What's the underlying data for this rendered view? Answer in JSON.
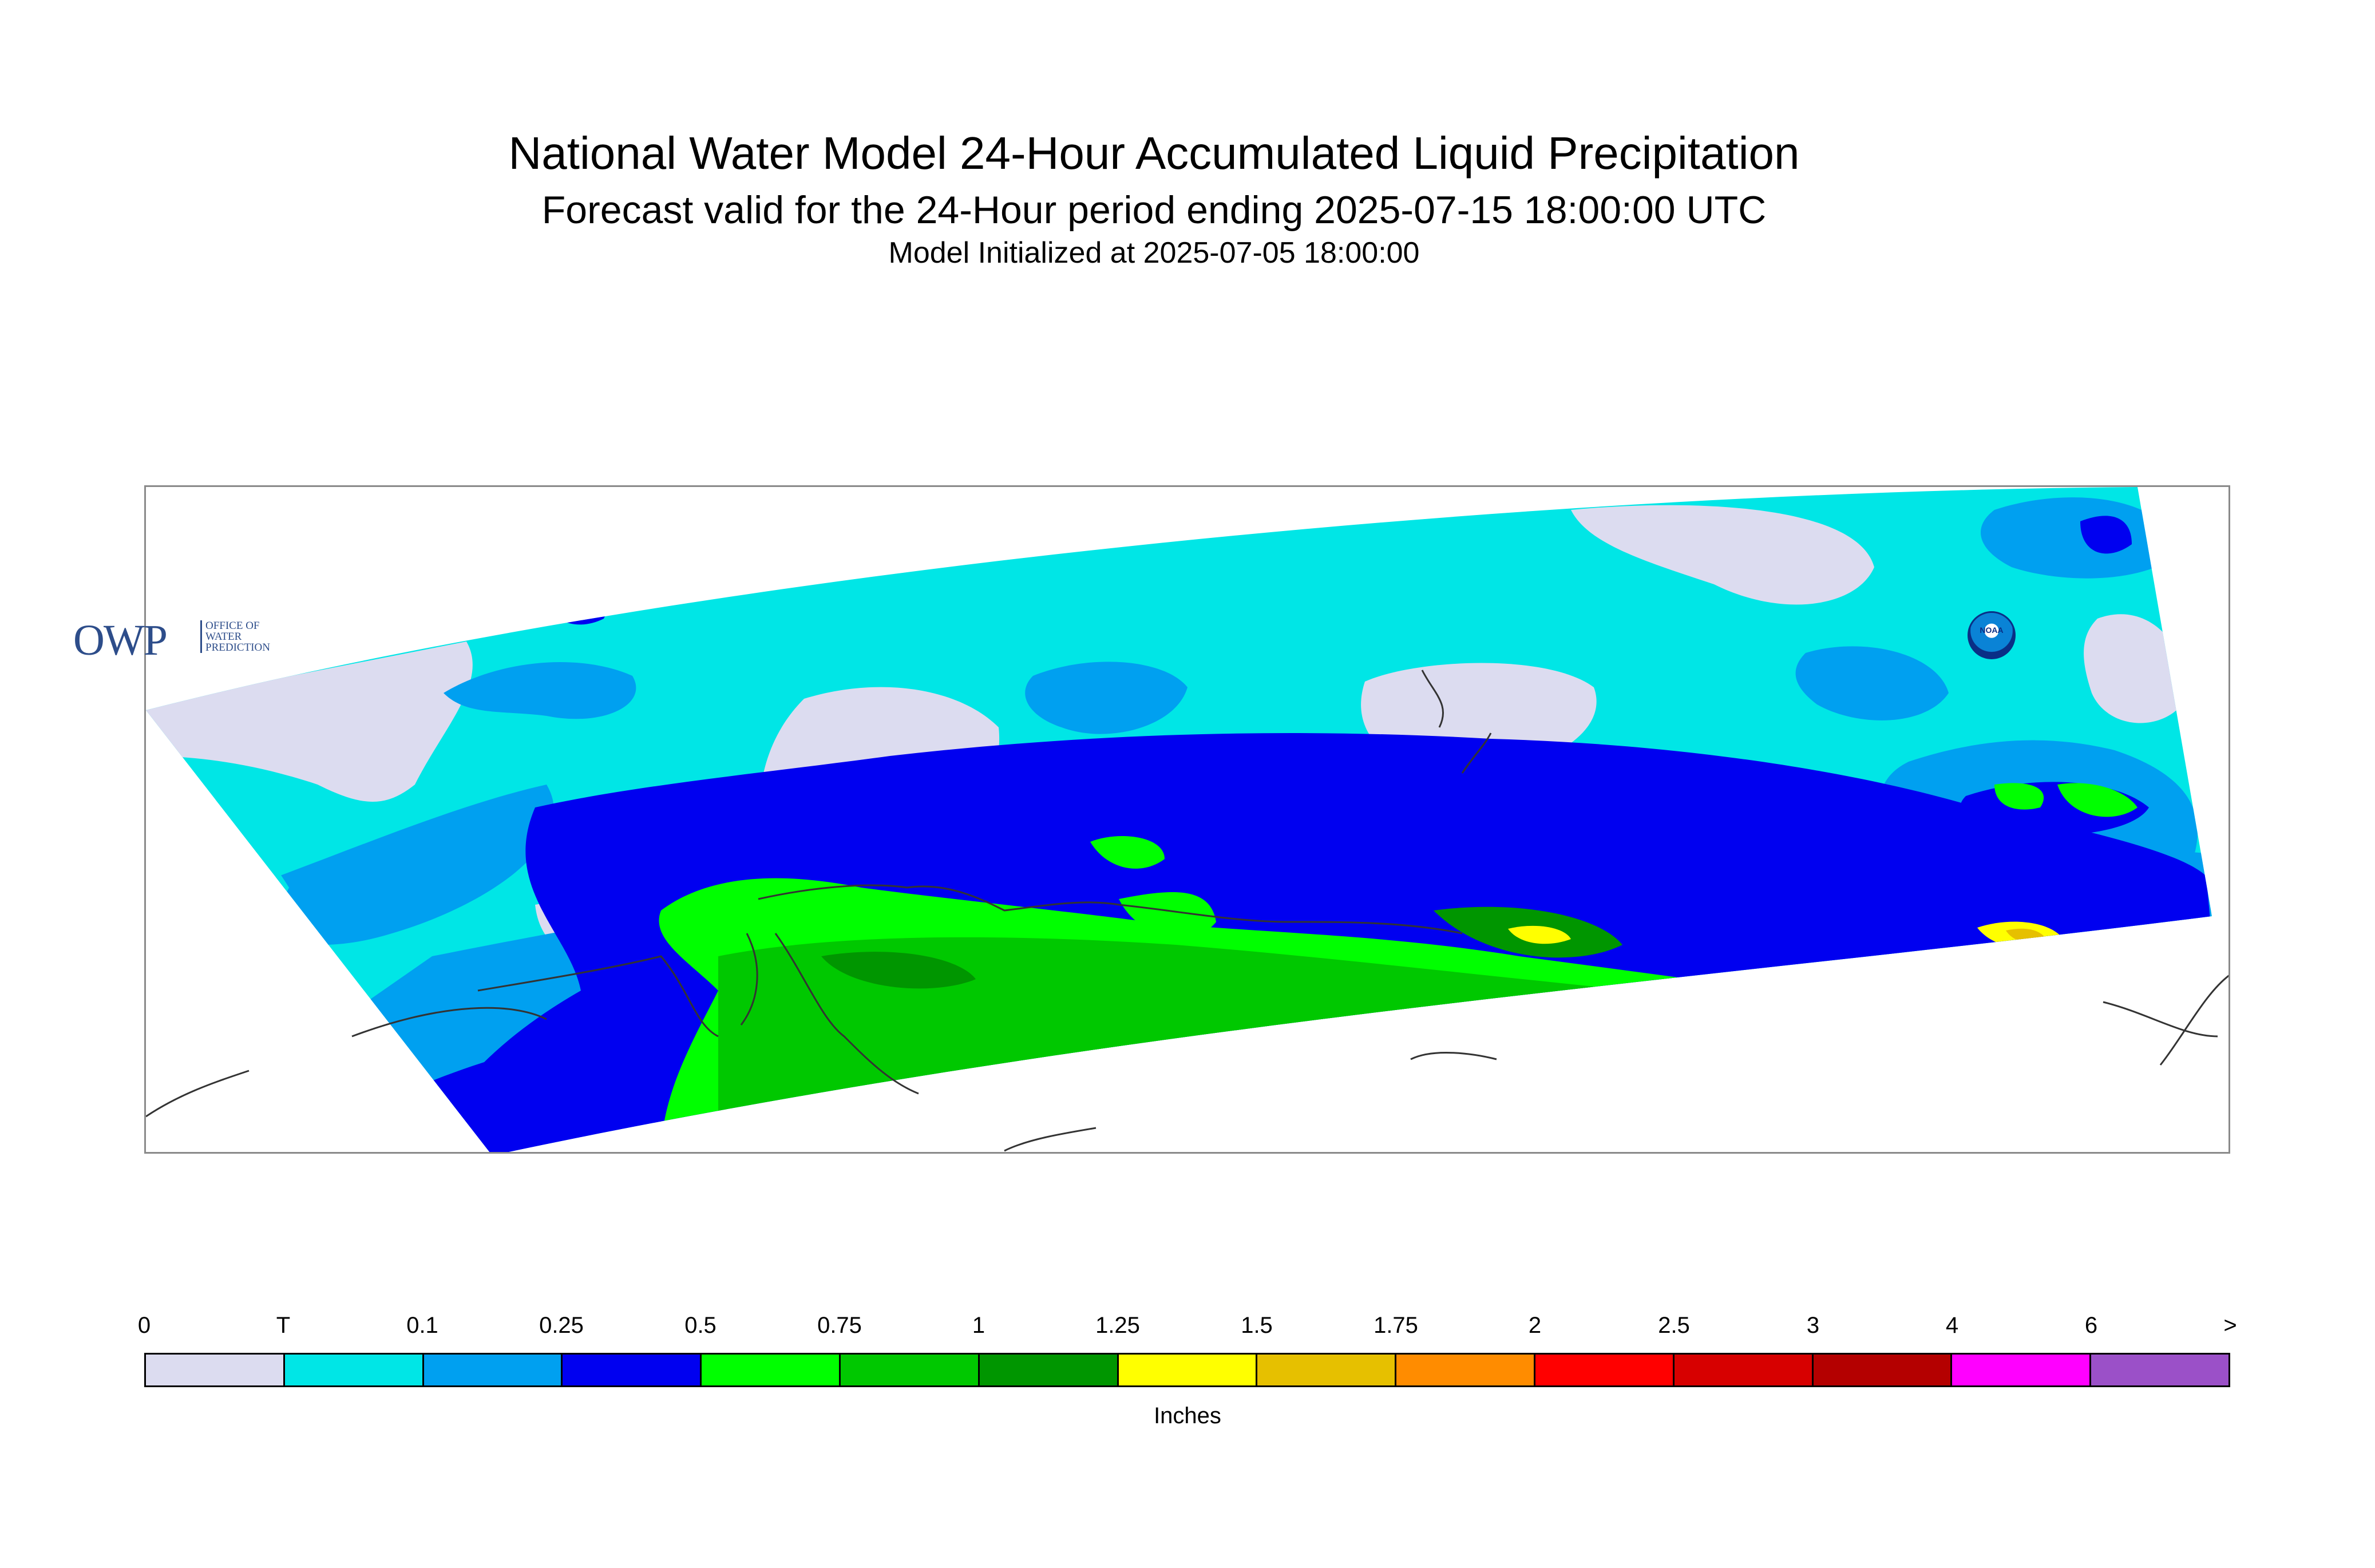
{
  "title": "National Water Model 24-Hour Accumulated Liquid Precipitation",
  "subtitle": "Forecast valid for the 24-Hour period ending 2025-07-15 18:00:00 UTC",
  "initialized": "Model Initialized at 2025-07-05 18:00:00",
  "logos": {
    "owp_mark": "OWP",
    "owp_text": "OFFICE OF WATER PREDICTION",
    "noaa": "NOAA"
  },
  "legend": {
    "units": "Inches",
    "ticks": [
      "0",
      "T",
      "0.1",
      "0.25",
      "0.5",
      "0.75",
      "1",
      "1.25",
      "1.5",
      "1.75",
      "2",
      "2.5",
      "3",
      "4",
      "6",
      ">"
    ],
    "colors": [
      "#dcdcf0",
      "#00e6e6",
      "#00a0f0",
      "#0000f0",
      "#00ff00",
      "#00c800",
      "#009600",
      "#ffff00",
      "#e6c000",
      "#ff8c00",
      "#ff0000",
      "#d70000",
      "#b40000",
      "#ff00ff",
      "#9b50c8"
    ]
  }
}
